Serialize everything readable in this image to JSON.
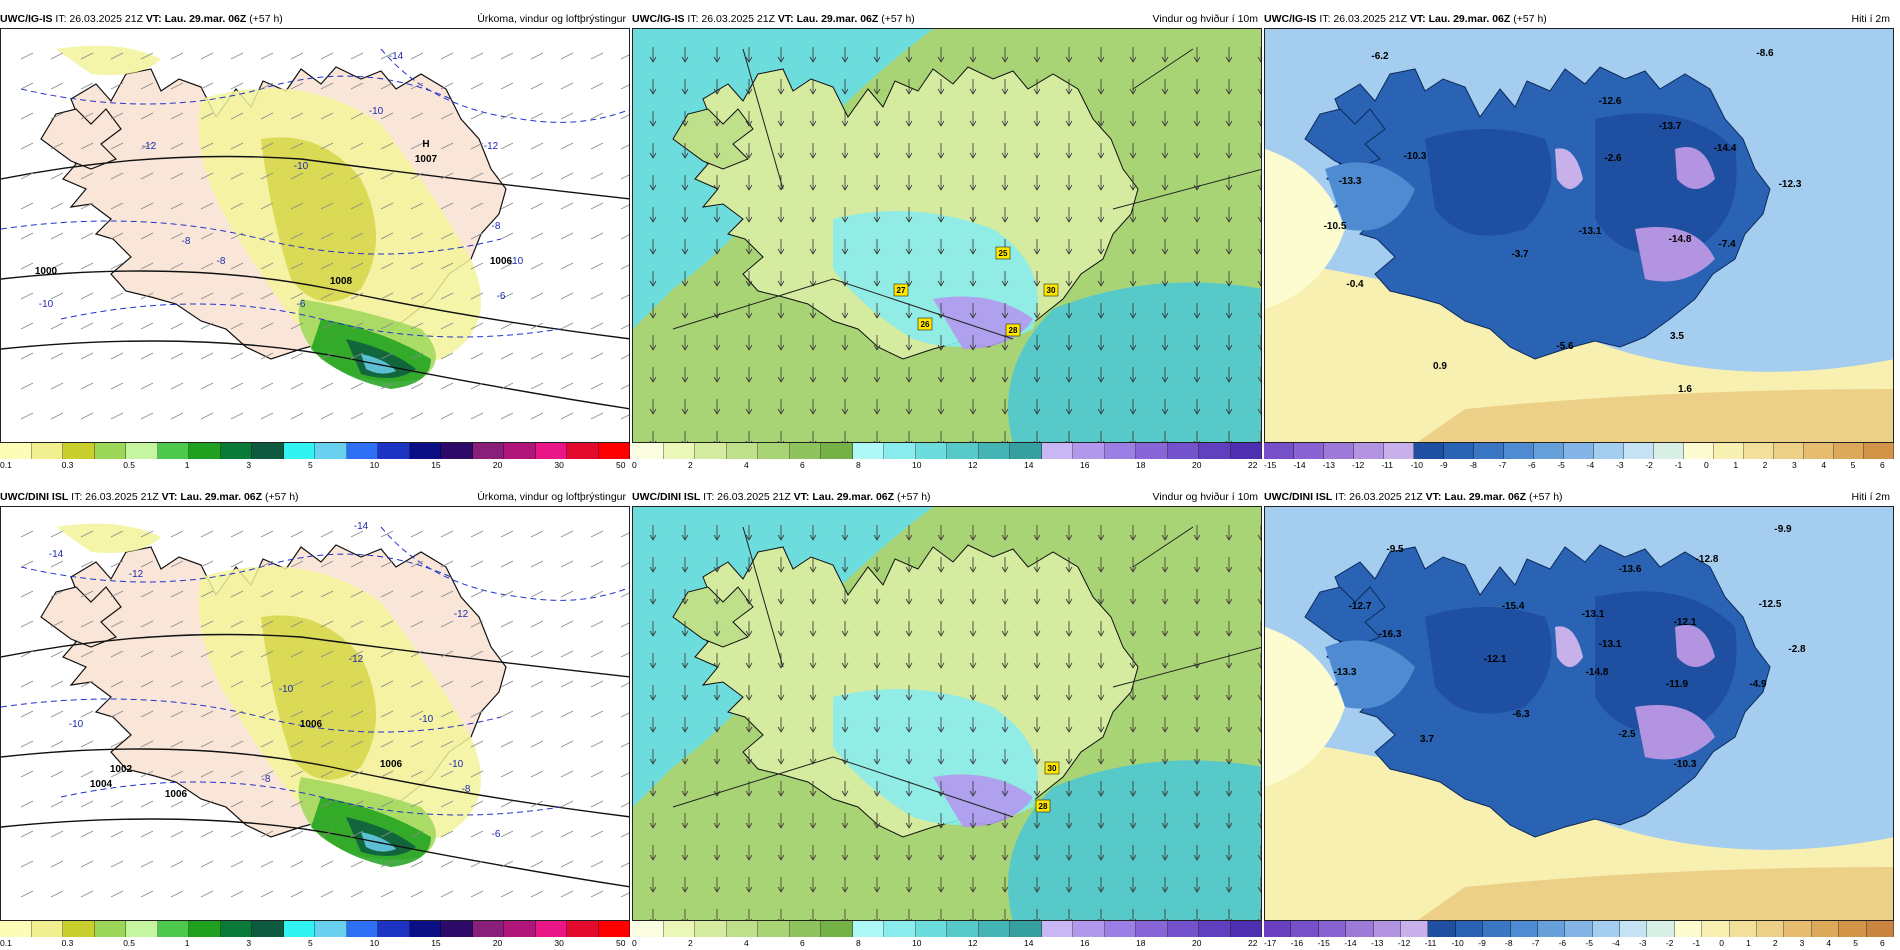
{
  "panels": [
    {
      "model": "UWC/IG-IS",
      "it": "IT: 26.03.2025 21Z",
      "vt": "VT: Lau. 29.mar. 06Z",
      "lead": "(+57 h)",
      "title": "Úrkoma, vindur og loftþrýstingur",
      "kind": "precip",
      "labels": [
        {
          "t": "-14",
          "cls": "ctr"
        },
        {
          "t": "-12",
          "cls": "ctr"
        },
        {
          "t": "-10",
          "cls": "ctr"
        },
        {
          "t": "-10",
          "cls": "ctr"
        },
        {
          "t": "-8",
          "cls": "ctr"
        },
        {
          "t": "-6",
          "cls": "ctr"
        },
        {
          "t": "-10",
          "cls": "ctr"
        },
        {
          "t": "-8",
          "cls": "ctr"
        },
        {
          "t": "-6",
          "cls": "ctr"
        },
        {
          "t": "-10",
          "cls": "ctr"
        },
        {
          "t": "-12",
          "cls": "ctr"
        },
        {
          "t": "-8",
          "cls": "ctr"
        },
        {
          "t": "1000",
          "cls": "iso"
        },
        {
          "t": "1008",
          "cls": "iso"
        },
        {
          "t": "1006",
          "cls": "iso"
        },
        {
          "t": "H",
          "cls": "h"
        },
        {
          "t": "1007",
          "cls": "h"
        }
      ],
      "cbar_colors": [
        "#fdfdb7",
        "#f0f090",
        "#c9cf2d",
        "#9dd75a",
        "#c6f5a1",
        "#4cc84a",
        "#1fa11f",
        "#0a7a3a",
        "#0d5a40",
        "#31f3f0",
        "#6ad0ef",
        "#2e6ff6",
        "#1c33c4",
        "#0c0e86",
        "#2d0a6a",
        "#8a1f7a",
        "#b0157a",
        "#e81686",
        "#e30a2e",
        "#ff0000"
      ],
      "cbar_ticks": [
        "0.1",
        "0.3",
        "0.5",
        "1",
        "3",
        "5",
        "10",
        "15",
        "20",
        "30",
        "50"
      ]
    },
    {
      "model": "UWC/IG-IS",
      "it": "IT: 26.03.2025 21Z",
      "vt": "VT: Lau. 29.mar. 06Z",
      "lead": "(+57 h)",
      "title": "Vindur og hviður í 10m",
      "kind": "wind",
      "labels": [
        {
          "t": "25",
          "cls": "tag"
        },
        {
          "t": "27",
          "cls": "tag"
        },
        {
          "t": "30",
          "cls": "tag"
        },
        {
          "t": "26",
          "cls": "tag"
        },
        {
          "t": "28",
          "cls": "tag"
        }
      ],
      "cbar_colors": [
        "#fbfde0",
        "#eaf7b8",
        "#d4eba0",
        "#bfe08a",
        "#a9d475",
        "#8fc35e",
        "#75b146",
        "#aef8f8",
        "#8aecec",
        "#6ddcdc",
        "#58c9c9",
        "#45b4b4",
        "#36a0a0",
        "#c8b6f5",
        "#b299ee",
        "#9c7fe4",
        "#8866d8",
        "#7452cc",
        "#6040bf",
        "#4e2fb0"
      ],
      "cbar_ticks": [
        "0",
        "2",
        "4",
        "6",
        "8",
        "10",
        "12",
        "14",
        "16",
        "18",
        "20",
        "22"
      ]
    },
    {
      "model": "UWC/IG-IS",
      "it": "IT: 26.03.2025 21Z",
      "vt": "VT: Lau. 29.mar. 06Z",
      "lead": "(+57 h)",
      "title": "Hiti í 2m",
      "kind": "temp",
      "labels": [
        {
          "t": "-6.2",
          "cls": "t"
        },
        {
          "t": "-8.6",
          "cls": "t"
        },
        {
          "t": "-12.6",
          "cls": "t"
        },
        {
          "t": "-13.7",
          "cls": "t"
        },
        {
          "t": "-14.4",
          "cls": "t"
        },
        {
          "t": "-10.3",
          "cls": "t"
        },
        {
          "t": "-2.6",
          "cls": "t"
        },
        {
          "t": "-13.3",
          "cls": "t"
        },
        {
          "t": "-12.3",
          "cls": "t"
        },
        {
          "t": "-10.5",
          "cls": "t"
        },
        {
          "t": "-13.1",
          "cls": "t"
        },
        {
          "t": "-14.8",
          "cls": "t"
        },
        {
          "t": "-7.4",
          "cls": "t"
        },
        {
          "t": "-3.7",
          "cls": "t"
        },
        {
          "t": "-0.4",
          "cls": "t"
        },
        {
          "t": "3.5",
          "cls": "t"
        },
        {
          "t": "-5.6",
          "cls": "t"
        },
        {
          "t": "0.9",
          "cls": "t"
        },
        {
          "t": "1.6",
          "cls": "t"
        }
      ],
      "cbar_colors": [
        "#7650c8",
        "#8a63d2",
        "#9e7ad8",
        "#b394e0",
        "#c8b0ea",
        "#1e4fa0",
        "#2a63b3",
        "#3b76c2",
        "#4e8bd0",
        "#679fdb",
        "#84b5e6",
        "#a4cdf0",
        "#c6e3f4",
        "#d8efe6",
        "#fdfbd0",
        "#f8f0b0",
        "#f2e09a",
        "#ecd088",
        "#e6bc70",
        "#dca85a",
        "#d29548"
      ],
      "cbar_ticks": [
        "-15",
        "-14",
        "-13",
        "-12",
        "-11",
        "-10",
        "-9",
        "-8",
        "-7",
        "-6",
        "-5",
        "-4",
        "-3",
        "-2",
        "-1",
        "0",
        "1",
        "2",
        "3",
        "4",
        "5",
        "6"
      ]
    },
    {
      "model": "UWC/DINI ISL",
      "it": "IT: 26.03.2025 21Z",
      "vt": "VT: Lau. 29.mar. 06Z",
      "lead": "(+57 h)",
      "title": "Úrkoma, vindur og loftþrýstingur",
      "kind": "precip",
      "labels": [
        {
          "t": "-14",
          "cls": "ctr"
        },
        {
          "t": "-14",
          "cls": "ctr"
        },
        {
          "t": "-12",
          "cls": "ctr"
        },
        {
          "t": "-12",
          "cls": "ctr"
        },
        {
          "t": "-10",
          "cls": "ctr"
        },
        {
          "t": "-10",
          "cls": "ctr"
        },
        {
          "t": "-8",
          "cls": "ctr"
        },
        {
          "t": "-12",
          "cls": "ctr"
        },
        {
          "t": "-10",
          "cls": "ctr"
        },
        {
          "t": "-10",
          "cls": "ctr"
        },
        {
          "t": "-8",
          "cls": "ctr"
        },
        {
          "t": "-6",
          "cls": "ctr"
        },
        {
          "t": "1006",
          "cls": "iso"
        },
        {
          "t": "1004",
          "cls": "iso"
        },
        {
          "t": "1006",
          "cls": "iso"
        },
        {
          "t": "1002",
          "cls": "iso"
        },
        {
          "t": "1006",
          "cls": "iso"
        }
      ],
      "cbar_colors": [
        "#fdfdb7",
        "#f0f090",
        "#c9cf2d",
        "#9dd75a",
        "#c6f5a1",
        "#4cc84a",
        "#1fa11f",
        "#0a7a3a",
        "#0d5a40",
        "#31f3f0",
        "#6ad0ef",
        "#2e6ff6",
        "#1c33c4",
        "#0c0e86",
        "#2d0a6a",
        "#8a1f7a",
        "#b0157a",
        "#e81686",
        "#e30a2e",
        "#ff0000"
      ],
      "cbar_ticks": [
        "0.1",
        "0.3",
        "0.5",
        "1",
        "3",
        "5",
        "10",
        "15",
        "20",
        "30",
        "50"
      ]
    },
    {
      "model": "UWC/DINI ISL",
      "it": "IT: 26.03.2025 21Z",
      "vt": "VT: Lau. 29.mar. 06Z",
      "lead": "(+57 h)",
      "title": "Vindur og hviður í 10m",
      "kind": "wind",
      "labels": [
        {
          "t": "30",
          "cls": "tag"
        },
        {
          "t": "28",
          "cls": "tag"
        }
      ],
      "cbar_colors": [
        "#fbfde0",
        "#eaf7b8",
        "#d4eba0",
        "#bfe08a",
        "#a9d475",
        "#8fc35e",
        "#75b146",
        "#aef8f8",
        "#8aecec",
        "#6ddcdc",
        "#58c9c9",
        "#45b4b4",
        "#36a0a0",
        "#c8b6f5",
        "#b299ee",
        "#9c7fe4",
        "#8866d8",
        "#7452cc",
        "#6040bf",
        "#4e2fb0"
      ],
      "cbar_ticks": [
        "0",
        "2",
        "4",
        "6",
        "8",
        "10",
        "12",
        "14",
        "16",
        "18",
        "20",
        "22"
      ]
    },
    {
      "model": "UWC/DINI ISL",
      "it": "IT: 26.03.2025 21Z",
      "vt": "VT: Lau. 29.mar. 06Z",
      "lead": "(+57 h)",
      "title": "Hiti í 2m",
      "kind": "temp",
      "labels": [
        {
          "t": "-9.5",
          "cls": "t"
        },
        {
          "t": "-9.9",
          "cls": "t"
        },
        {
          "t": "-13.6",
          "cls": "t"
        },
        {
          "t": "-12.8",
          "cls": "t"
        },
        {
          "t": "-12.7",
          "cls": "t"
        },
        {
          "t": "-15.4",
          "cls": "t"
        },
        {
          "t": "-13.1",
          "cls": "t"
        },
        {
          "t": "-12.5",
          "cls": "t"
        },
        {
          "t": "-13.1",
          "cls": "t"
        },
        {
          "t": "-12.1",
          "cls": "t"
        },
        {
          "t": "-16.3",
          "cls": "t"
        },
        {
          "t": "-12.1",
          "cls": "t"
        },
        {
          "t": "-13.3",
          "cls": "t"
        },
        {
          "t": "-14.8",
          "cls": "t"
        },
        {
          "t": "-11.9",
          "cls": "t"
        },
        {
          "t": "-4.9",
          "cls": "t"
        },
        {
          "t": "-2.8",
          "cls": "t"
        },
        {
          "t": "-6.3",
          "cls": "t"
        },
        {
          "t": "-2.5",
          "cls": "t"
        },
        {
          "t": "3.7",
          "cls": "t"
        },
        {
          "t": "-10.3",
          "cls": "t"
        }
      ],
      "cbar_colors": [
        "#6a40c0",
        "#7650c8",
        "#8a63d2",
        "#9e7ad8",
        "#b394e0",
        "#c8b0ea",
        "#1e4fa0",
        "#2a63b3",
        "#3b76c2",
        "#4e8bd0",
        "#679fdb",
        "#84b5e6",
        "#a4cdf0",
        "#c6e3f4",
        "#d8efe6",
        "#fdfbd0",
        "#f8f0b0",
        "#f2e09a",
        "#ecd088",
        "#e6bc70",
        "#dca85a",
        "#d29548",
        "#c88440"
      ],
      "cbar_ticks": [
        "-17",
        "-16",
        "-15",
        "-14",
        "-13",
        "-12",
        "-11",
        "-10",
        "-9",
        "-8",
        "-7",
        "-6",
        "-5",
        "-4",
        "-3",
        "-2",
        "-1",
        "0",
        "1",
        "2",
        "3",
        "4",
        "5",
        "6"
      ]
    }
  ]
}
